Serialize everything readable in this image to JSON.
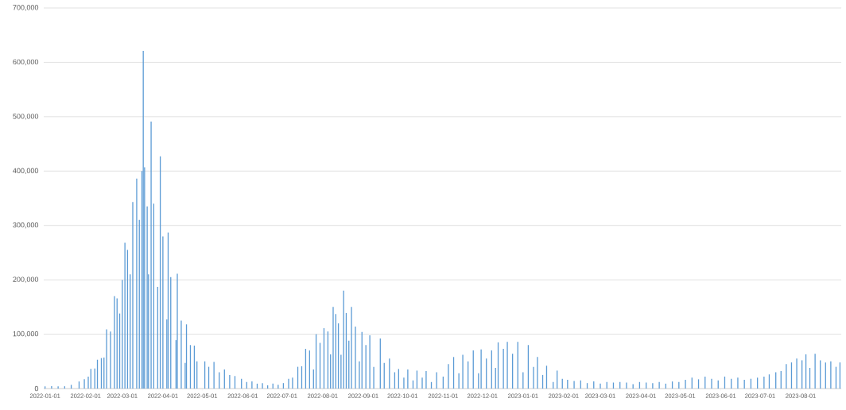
{
  "chart_data": {
    "type": "bar",
    "color": "#5b9bd5",
    "grid": "y",
    "xlim": [
      "2021-12-31",
      "2023-09-01"
    ],
    "xticks": [
      "2022-01-01",
      "2022-02-01",
      "2022-03-01",
      "2022-04-01",
      "2022-05-01",
      "2022-06-01",
      "2022-07-01",
      "2022-08-01",
      "2022-09-01",
      "2022-10-01",
      "2022-11-01",
      "2022-12-01",
      "2023-01-01",
      "2023-02-01",
      "2023-03-01",
      "2023-04-01",
      "2023-05-01",
      "2023-06-01",
      "2023-07-01",
      "2023-08-01"
    ],
    "ylim": [
      0,
      700000
    ],
    "yticks": [
      {
        "value": 0,
        "label": "0"
      },
      {
        "value": 100000,
        "label": "100,000"
      },
      {
        "value": 200000,
        "label": "200,000"
      },
      {
        "value": 300000,
        "label": "300,000"
      },
      {
        "value": 400000,
        "label": "400,000"
      },
      {
        "value": 500000,
        "label": "500,000"
      },
      {
        "value": 600000,
        "label": "600,000"
      },
      {
        "value": 700000,
        "label": "700,000"
      }
    ],
    "x": [
      "2022-01-01",
      "2022-01-06",
      "2022-01-11",
      "2022-01-16",
      "2022-01-21",
      "2022-01-27",
      "2022-01-31",
      "2022-02-03",
      "2022-02-05",
      "2022-02-08",
      "2022-02-10",
      "2022-02-13",
      "2022-02-15",
      "2022-02-17",
      "2022-02-20",
      "2022-02-23",
      "2022-02-25",
      "2022-02-27",
      "2022-03-01",
      "2022-03-03",
      "2022-03-05",
      "2022-03-07",
      "2022-03-09",
      "2022-03-12",
      "2022-03-14",
      "2022-03-16",
      "2022-03-17",
      "2022-03-18",
      "2022-03-20",
      "2022-03-21",
      "2022-03-23",
      "2022-03-25",
      "2022-03-28",
      "2022-03-30",
      "2022-04-01",
      "2022-04-04",
      "2022-04-05",
      "2022-04-07",
      "2022-04-11",
      "2022-04-12",
      "2022-04-15",
      "2022-04-18",
      "2022-04-19",
      "2022-04-22",
      "2022-04-25",
      "2022-04-27",
      "2022-05-03",
      "2022-05-06",
      "2022-05-10",
      "2022-05-14",
      "2022-05-18",
      "2022-05-22",
      "2022-05-26",
      "2022-05-31",
      "2022-06-04",
      "2022-06-08",
      "2022-06-12",
      "2022-06-16",
      "2022-06-20",
      "2022-06-24",
      "2022-06-28",
      "2022-07-02",
      "2022-07-06",
      "2022-07-09",
      "2022-07-13",
      "2022-07-16",
      "2022-07-19",
      "2022-07-22",
      "2022-07-25",
      "2022-07-27",
      "2022-07-30",
      "2022-08-02",
      "2022-08-05",
      "2022-08-07",
      "2022-08-09",
      "2022-08-11",
      "2022-08-13",
      "2022-08-15",
      "2022-08-17",
      "2022-08-19",
      "2022-08-21",
      "2022-08-23",
      "2022-08-26",
      "2022-08-29",
      "2022-08-31",
      "2022-09-03",
      "2022-09-06",
      "2022-09-09",
      "2022-09-14",
      "2022-09-17",
      "2022-09-21",
      "2022-09-25",
      "2022-09-28",
      "2022-10-02",
      "2022-10-05",
      "2022-10-09",
      "2022-10-12",
      "2022-10-16",
      "2022-10-19",
      "2022-10-23",
      "2022-10-27",
      "2022-11-01",
      "2022-11-05",
      "2022-11-09",
      "2022-11-13",
      "2022-11-16",
      "2022-11-20",
      "2022-11-24",
      "2022-11-28",
      "2022-11-30",
      "2022-12-04",
      "2022-12-08",
      "2022-12-11",
      "2022-12-13",
      "2022-12-17",
      "2022-12-20",
      "2022-12-24",
      "2022-12-28",
      "2023-01-01",
      "2023-01-05",
      "2023-01-09",
      "2023-01-12",
      "2023-01-16",
      "2023-01-19",
      "2023-01-24",
      "2023-01-27",
      "2023-01-31",
      "2023-02-04",
      "2023-02-09",
      "2023-02-14",
      "2023-02-19",
      "2023-02-24",
      "2023-03-01",
      "2023-03-06",
      "2023-03-11",
      "2023-03-16",
      "2023-03-21",
      "2023-03-26",
      "2023-03-31",
      "2023-04-05",
      "2023-04-10",
      "2023-04-15",
      "2023-04-20",
      "2023-04-25",
      "2023-04-30",
      "2023-05-05",
      "2023-05-10",
      "2023-05-15",
      "2023-05-20",
      "2023-05-25",
      "2023-05-30",
      "2023-06-04",
      "2023-06-09",
      "2023-06-14",
      "2023-06-19",
      "2023-06-24",
      "2023-06-29",
      "2023-07-04",
      "2023-07-08",
      "2023-07-13",
      "2023-07-17",
      "2023-07-21",
      "2023-07-25",
      "2023-07-29",
      "2023-08-02",
      "2023-08-05",
      "2023-08-08",
      "2023-08-12",
      "2023-08-16",
      "2023-08-20",
      "2023-08-24",
      "2023-08-28",
      "2023-08-31"
    ],
    "values": [
      4000,
      4400,
      4200,
      4200,
      6800,
      13000,
      17000,
      22000,
      36000,
      37000,
      53000,
      56000,
      57000,
      109000,
      105000,
      170000,
      166000,
      138000,
      200000,
      268000,
      255000,
      210000,
      343000,
      386000,
      310000,
      400000,
      621000,
      407000,
      335000,
      210000,
      491000,
      340000,
      187000,
      427000,
      280000,
      127000,
      287000,
      205000,
      89000,
      211000,
      125000,
      47000,
      118000,
      80000,
      79000,
      50000,
      50000,
      40000,
      49000,
      30000,
      35000,
      25000,
      23000,
      18000,
      12000,
      13000,
      9000,
      10000,
      6000,
      9000,
      7000,
      10000,
      18000,
      20000,
      40000,
      41000,
      73000,
      70000,
      35000,
      100000,
      84000,
      111000,
      105000,
      63000,
      150000,
      137000,
      120000,
      62000,
      180000,
      139000,
      88000,
      150000,
      114000,
      50000,
      104000,
      80000,
      98000,
      40000,
      92000,
      47000,
      55000,
      30000,
      36000,
      20000,
      35000,
      15000,
      33000,
      20000,
      32000,
      12000,
      30000,
      22000,
      45000,
      58000,
      28000,
      62000,
      50000,
      70000,
      28000,
      72000,
      55000,
      70000,
      38000,
      85000,
      73000,
      86000,
      64000,
      86000,
      30000,
      80000,
      40000,
      58000,
      25000,
      42000,
      12000,
      33000,
      18000,
      16000,
      14000,
      15000,
      10000,
      13000,
      9000,
      12000,
      11000,
      12000,
      11000,
      8000,
      12000,
      11000,
      10000,
      12000,
      9000,
      13000,
      12000,
      16000,
      20000,
      17000,
      22000,
      18000,
      15000,
      22000,
      18000,
      20000,
      16000,
      18000,
      20000,
      22000,
      26000,
      30000,
      32000,
      45000,
      48000,
      55000,
      52000,
      63000,
      38000,
      64000,
      52000,
      48000,
      50000,
      40000,
      48000
    ]
  }
}
